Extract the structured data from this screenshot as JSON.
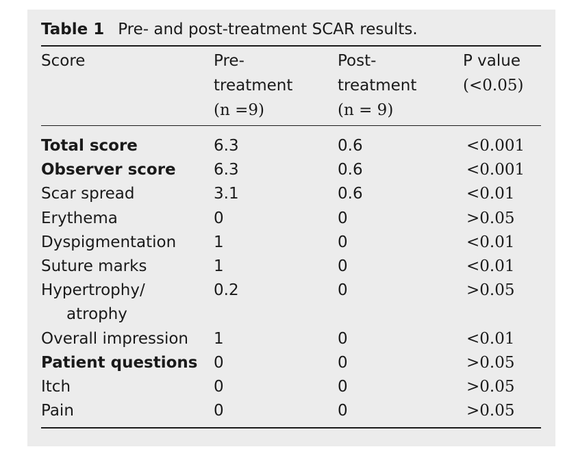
{
  "caption": {
    "label": "Table 1",
    "title": "Pre- and post-treatment SCAR results."
  },
  "header": {
    "score": "Score",
    "pre_line1": "Pre-",
    "pre_line2": "treatment",
    "pre_line3": "(n =9)",
    "post_line1": "Post-",
    "post_line2": "treatment",
    "post_line3": "(n = 9)",
    "p_line1": "P value",
    "p_line2": "(<0.05)"
  },
  "rows": [
    {
      "score": "Total score",
      "pre": "6.3",
      "post": "0.6",
      "p": "<0.001"
    },
    {
      "score": "Observer score",
      "pre": "6.3",
      "post": "0.6",
      "p": "<0.001"
    },
    {
      "score": "Scar spread",
      "pre": "3.1",
      "post": "0.6",
      "p": "<0.01"
    },
    {
      "score": "Erythema",
      "pre": "0",
      "post": "0",
      "p": ">0.05"
    },
    {
      "score": "Dyspigmentation",
      "pre": "1",
      "post": "0",
      "p": "<0.01"
    },
    {
      "score": "Suture marks",
      "pre": "1",
      "post": "0",
      "p": "<0.01"
    },
    {
      "score": "Hypertrophy/",
      "score_line2": "atrophy",
      "pre": "0.2",
      "post": "0",
      "p": ">0.05"
    },
    {
      "score": "Overall impression",
      "pre": "1",
      "post": "0",
      "p": "<0.01"
    },
    {
      "score": "Patient questions",
      "pre": "0",
      "post": "0",
      "p": ">0.05"
    },
    {
      "score": "Itch",
      "pre": "0",
      "post": "0",
      "p": ">0.05"
    },
    {
      "score": "Pain",
      "pre": "0",
      "post": "0",
      "p": ">0.05"
    }
  ]
}
